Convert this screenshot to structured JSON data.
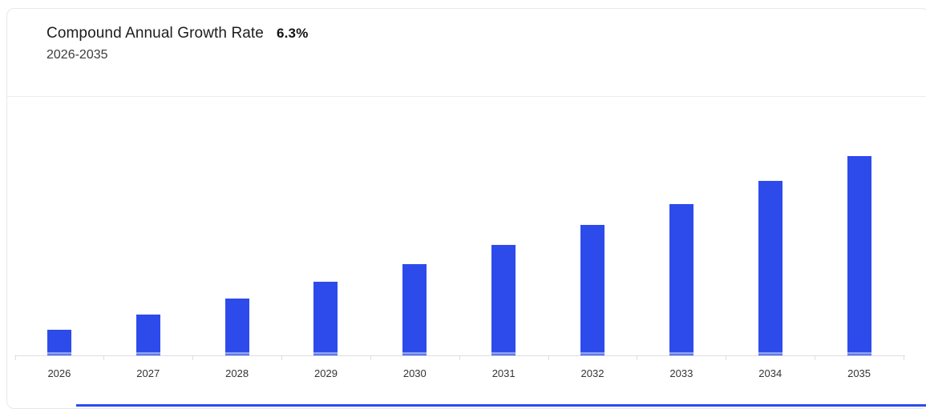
{
  "header": {
    "title": "Compound Annual Growth Rate",
    "cagr_value": "6.3%",
    "subtitle": "2026-2035"
  },
  "chart_data": {
    "type": "bar",
    "title": "Compound Annual Growth Rate 6.3%",
    "subtitle": "2026-2035",
    "categories": [
      "2026",
      "2027",
      "2028",
      "2029",
      "2030",
      "2031",
      "2032",
      "2033",
      "2034",
      "2035"
    ],
    "values": [
      32,
      51,
      71,
      92,
      114,
      138,
      163,
      189,
      218,
      249
    ],
    "value_note": "no y-axis or value labels shown; values are measured bar heights in screen pixels",
    "xlabel": "",
    "ylabel": "",
    "grid": false,
    "legend": "none",
    "bar_color": "#2d4beb",
    "bar_base_stripe_color": "#8a9ef0",
    "axis_line_color": "#dedee1",
    "tick_label_color": "#333436"
  },
  "footer": {
    "accent_line_color": "#2d4beb"
  }
}
